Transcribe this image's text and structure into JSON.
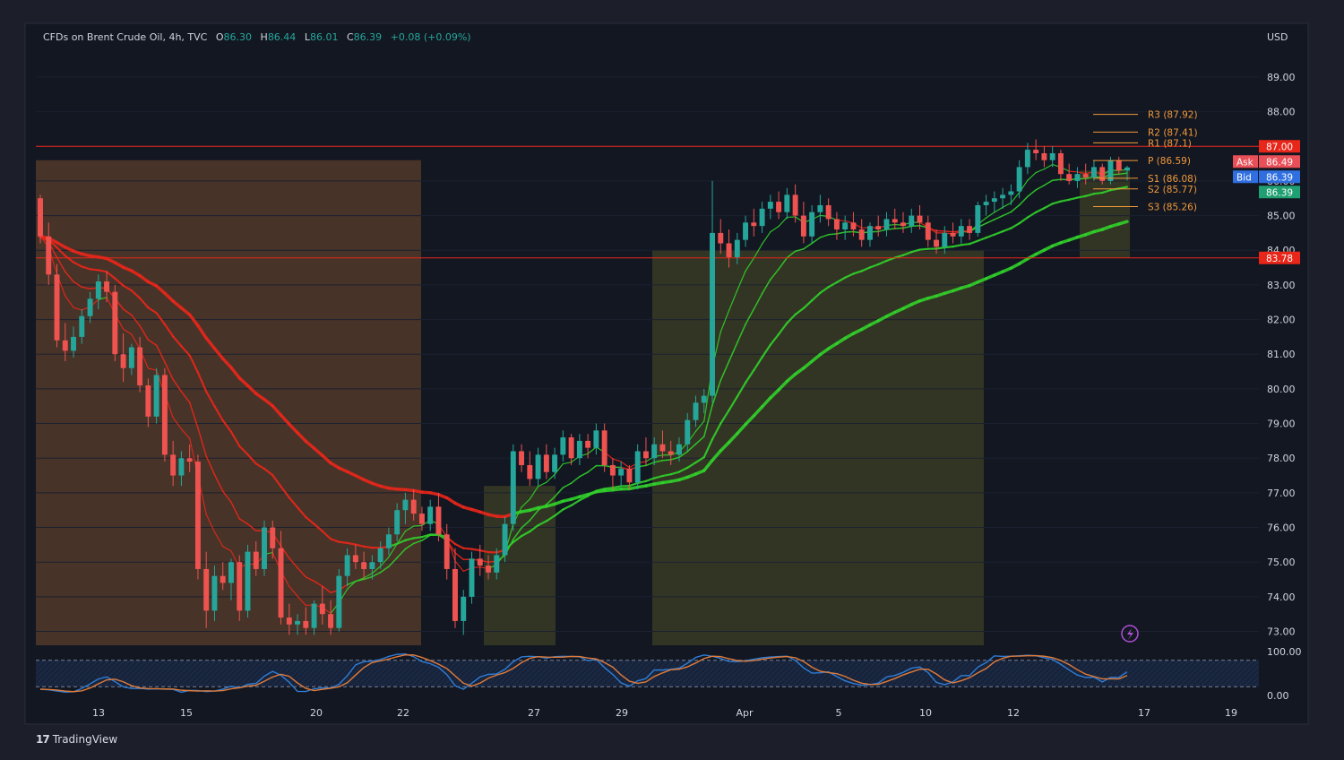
{
  "header": {
    "symbol": "CFDs on Brent Crude Oil, 4h, TVC",
    "o_label": "O",
    "o": "86.30",
    "h_label": "H",
    "h": "86.44",
    "l_label": "L",
    "l": "86.01",
    "c_label": "C",
    "c": "86.39",
    "change": "+0.08 (+0.09%)"
  },
  "currency": "USD",
  "brand": "TradingView",
  "colors": {
    "bg": "#1c1f2a",
    "plot_bg": "#121722",
    "up": "#26a69a",
    "down": "#ef5350",
    "ema_red": "#e8261a",
    "ema_green": "#31d02a",
    "pivot": "#f2993a",
    "zone_orange": "#8a5630",
    "zone_olive": "#5a5a26",
    "stoch_blue": "#2f7dd6",
    "stoch_orange": "#e07b39"
  },
  "chart_data": {
    "type": "candlestick",
    "title": "CFDs on Brent Crude Oil, 4h, TVC",
    "y_range": [
      72.6,
      89.8
    ],
    "y_ticks": [
      "89.00",
      "88.00",
      "87.00",
      "86.00",
      "85.00",
      "84.00",
      "83.00",
      "82.00",
      "81.00",
      "80.00",
      "79.00",
      "78.00",
      "77.00",
      "76.00",
      "75.00",
      "74.00",
      "73.00"
    ],
    "x_ticks": [
      "13",
      "15",
      "20",
      "22",
      "27",
      "29",
      "Apr",
      "5",
      "10",
      "12",
      "17",
      "19"
    ],
    "ohlc": [
      [
        85.5,
        85.6,
        84.2,
        84.4
      ],
      [
        84.4,
        84.8,
        83.0,
        83.3
      ],
      [
        83.3,
        83.6,
        81.2,
        81.4
      ],
      [
        81.4,
        81.9,
        80.8,
        81.1
      ],
      [
        81.1,
        81.8,
        80.9,
        81.5
      ],
      [
        81.5,
        82.3,
        81.3,
        82.1
      ],
      [
        82.1,
        82.8,
        81.9,
        82.6
      ],
      [
        82.6,
        83.3,
        82.3,
        83.1
      ],
      [
        83.1,
        83.4,
        82.5,
        82.8
      ],
      [
        82.8,
        83.0,
        80.8,
        81.0
      ],
      [
        81.0,
        81.6,
        80.2,
        80.6
      ],
      [
        80.6,
        81.3,
        80.4,
        81.2
      ],
      [
        81.2,
        81.5,
        79.9,
        80.1
      ],
      [
        80.1,
        80.3,
        78.9,
        79.2
      ],
      [
        79.2,
        80.6,
        79.0,
        80.4
      ],
      [
        80.4,
        80.6,
        77.9,
        78.1
      ],
      [
        78.1,
        78.5,
        77.2,
        77.5
      ],
      [
        77.5,
        78.2,
        77.2,
        78.0
      ],
      [
        78.0,
        78.4,
        77.6,
        77.9
      ],
      [
        77.9,
        78.1,
        74.5,
        74.8
      ],
      [
        74.8,
        75.3,
        73.1,
        73.6
      ],
      [
        73.6,
        74.9,
        73.3,
        74.6
      ],
      [
        74.6,
        75.0,
        74.2,
        74.4
      ],
      [
        74.4,
        75.1,
        73.9,
        75.0
      ],
      [
        75.0,
        75.2,
        73.3,
        73.6
      ],
      [
        73.6,
        75.5,
        73.4,
        75.3
      ],
      [
        75.3,
        75.6,
        74.6,
        74.8
      ],
      [
        74.8,
        76.2,
        74.6,
        76.0
      ],
      [
        76.0,
        76.2,
        75.1,
        75.4
      ],
      [
        75.4,
        75.9,
        73.2,
        73.4
      ],
      [
        73.4,
        73.8,
        72.9,
        73.2
      ],
      [
        73.2,
        73.5,
        72.9,
        73.3
      ],
      [
        73.3,
        73.7,
        72.9,
        73.1
      ],
      [
        73.1,
        73.9,
        72.9,
        73.8
      ],
      [
        73.8,
        74.3,
        73.2,
        73.5
      ],
      [
        73.5,
        73.9,
        72.9,
        73.1
      ],
      [
        73.1,
        74.8,
        73.0,
        74.6
      ],
      [
        74.6,
        75.4,
        74.3,
        75.2
      ],
      [
        75.2,
        75.5,
        74.8,
        75.0
      ],
      [
        75.0,
        75.3,
        74.5,
        74.8
      ],
      [
        74.8,
        75.2,
        74.5,
        75.0
      ],
      [
        75.0,
        75.6,
        74.8,
        75.4
      ],
      [
        75.4,
        76.0,
        75.2,
        75.8
      ],
      [
        75.8,
        76.7,
        75.6,
        76.5
      ],
      [
        76.5,
        77.0,
        76.1,
        76.8
      ],
      [
        76.8,
        77.1,
        76.2,
        76.4
      ],
      [
        76.4,
        76.6,
        75.9,
        76.1
      ],
      [
        76.1,
        76.8,
        75.9,
        76.6
      ],
      [
        76.6,
        77.0,
        75.6,
        75.8
      ],
      [
        75.8,
        76.1,
        74.5,
        74.8
      ],
      [
        74.8,
        75.4,
        73.1,
        73.3
      ],
      [
        73.3,
        74.2,
        72.9,
        74.0
      ],
      [
        74.0,
        75.3,
        73.8,
        75.1
      ],
      [
        75.1,
        75.5,
        74.6,
        74.9
      ],
      [
        74.9,
        75.2,
        74.5,
        74.7
      ],
      [
        74.7,
        75.4,
        74.5,
        75.2
      ],
      [
        75.2,
        76.3,
        75.0,
        76.1
      ],
      [
        76.1,
        78.4,
        75.9,
        78.2
      ],
      [
        78.2,
        78.4,
        77.6,
        77.8
      ],
      [
        77.8,
        78.2,
        77.2,
        77.4
      ],
      [
        77.4,
        78.3,
        77.2,
        78.1
      ],
      [
        78.1,
        78.4,
        77.4,
        77.6
      ],
      [
        77.6,
        78.3,
        77.4,
        78.1
      ],
      [
        78.1,
        78.8,
        77.9,
        78.6
      ],
      [
        78.6,
        78.7,
        77.8,
        78.0
      ],
      [
        78.0,
        78.7,
        77.8,
        78.5
      ],
      [
        78.5,
        78.7,
        78.0,
        78.3
      ],
      [
        78.3,
        79.0,
        78.1,
        78.8
      ],
      [
        78.8,
        79.0,
        77.6,
        77.8
      ],
      [
        77.8,
        78.0,
        77.1,
        77.5
      ],
      [
        77.5,
        77.9,
        77.2,
        77.7
      ],
      [
        77.7,
        77.8,
        77.1,
        77.3
      ],
      [
        77.3,
        78.4,
        77.1,
        78.2
      ],
      [
        78.2,
        78.6,
        77.8,
        78.0
      ],
      [
        78.0,
        78.6,
        77.8,
        78.4
      ],
      [
        78.4,
        78.8,
        78.0,
        78.2
      ],
      [
        78.2,
        78.5,
        77.8,
        78.1
      ],
      [
        78.1,
        78.6,
        77.9,
        78.4
      ],
      [
        78.4,
        79.3,
        78.2,
        79.1
      ],
      [
        79.1,
        79.8,
        78.9,
        79.6
      ],
      [
        79.6,
        80.0,
        79.3,
        79.8
      ],
      [
        79.8,
        86.0,
        79.6,
        84.5
      ],
      [
        84.5,
        84.9,
        83.9,
        84.2
      ],
      [
        84.2,
        84.6,
        83.5,
        83.8
      ],
      [
        83.8,
        84.5,
        83.6,
        84.3
      ],
      [
        84.3,
        85.0,
        84.1,
        84.8
      ],
      [
        84.8,
        85.2,
        84.4,
        84.7
      ],
      [
        84.7,
        85.4,
        84.5,
        85.2
      ],
      [
        85.2,
        85.6,
        84.9,
        85.4
      ],
      [
        85.4,
        85.7,
        84.9,
        85.1
      ],
      [
        85.1,
        85.8,
        84.9,
        85.6
      ],
      [
        85.6,
        85.9,
        84.8,
        85.0
      ],
      [
        85.0,
        85.4,
        84.2,
        84.4
      ],
      [
        84.4,
        85.3,
        84.2,
        85.1
      ],
      [
        85.1,
        85.6,
        84.8,
        85.3
      ],
      [
        85.3,
        85.5,
        84.7,
        84.9
      ],
      [
        84.9,
        85.1,
        84.3,
        84.6
      ],
      [
        84.6,
        85.0,
        84.3,
        84.8
      ],
      [
        84.8,
        85.1,
        84.4,
        84.6
      ],
      [
        84.6,
        84.9,
        84.1,
        84.3
      ],
      [
        84.3,
        84.8,
        84.1,
        84.7
      ],
      [
        84.7,
        85.0,
        84.4,
        84.6
      ],
      [
        84.6,
        85.1,
        84.4,
        84.9
      ],
      [
        84.9,
        85.2,
        84.6,
        84.8
      ],
      [
        84.8,
        85.1,
        84.5,
        84.7
      ],
      [
        84.7,
        85.2,
        84.5,
        85.0
      ],
      [
        85.0,
        85.3,
        84.6,
        84.8
      ],
      [
        84.8,
        85.0,
        84.1,
        84.3
      ],
      [
        84.3,
        84.6,
        83.9,
        84.1
      ],
      [
        84.1,
        84.7,
        83.9,
        84.5
      ],
      [
        84.5,
        84.8,
        84.2,
        84.4
      ],
      [
        84.4,
        84.9,
        84.2,
        84.7
      ],
      [
        84.7,
        84.9,
        84.3,
        84.5
      ],
      [
        84.5,
        85.4,
        84.4,
        85.3
      ],
      [
        85.3,
        85.6,
        85.0,
        85.4
      ],
      [
        85.4,
        85.7,
        85.1,
        85.5
      ],
      [
        85.5,
        85.8,
        85.2,
        85.6
      ],
      [
        85.6,
        85.9,
        85.3,
        85.7
      ],
      [
        85.7,
        86.6,
        85.5,
        86.4
      ],
      [
        86.4,
        87.1,
        86.2,
        86.9
      ],
      [
        86.9,
        87.2,
        86.6,
        86.8
      ],
      [
        86.8,
        87.0,
        86.4,
        86.6
      ],
      [
        86.6,
        87.0,
        86.4,
        86.8
      ],
      [
        86.8,
        86.9,
        86.0,
        86.2
      ],
      [
        86.2,
        86.5,
        85.9,
        86.0
      ],
      [
        86.0,
        86.4,
        85.8,
        86.2
      ],
      [
        86.2,
        86.5,
        85.9,
        86.1
      ],
      [
        86.1,
        86.6,
        86.0,
        86.4
      ],
      [
        86.4,
        86.5,
        85.9,
        86.0
      ],
      [
        86.0,
        86.7,
        85.9,
        86.6
      ],
      [
        86.6,
        86.7,
        86.2,
        86.3
      ],
      [
        86.3,
        86.44,
        86.01,
        86.39
      ]
    ],
    "price_labels": [
      {
        "label": "",
        "value": "87.00",
        "color": "#e8261a"
      },
      {
        "label": "Ask",
        "value": "86.49",
        "color": "#e94f57"
      },
      {
        "label": "Bid",
        "value": "86.39",
        "color": "#2f6fdf"
      },
      {
        "label": "",
        "value": "86.39",
        "color": "#1f9f72"
      },
      {
        "label": "",
        "value": "83.78",
        "color": "#e8261a"
      }
    ],
    "pivots": [
      {
        "name": "R3 (87.92)",
        "price": 87.92
      },
      {
        "name": "R2 (87.41)",
        "price": 87.41
      },
      {
        "name": "R1 (87.1)",
        "price": 87.1
      },
      {
        "name": "P (86.59)",
        "price": 86.59
      },
      {
        "name": "S1 (86.08)",
        "price": 86.08
      },
      {
        "name": "S2 (85.77)",
        "price": 85.77
      },
      {
        "name": "S3 (85.26)",
        "price": 85.26
      }
    ],
    "hlines": [
      87.0,
      83.78
    ],
    "stoch_range": [
      0,
      100
    ],
    "stoch_ticks": [
      "100.00",
      "0.00"
    ],
    "stoch_levels": [
      80,
      20
    ]
  }
}
